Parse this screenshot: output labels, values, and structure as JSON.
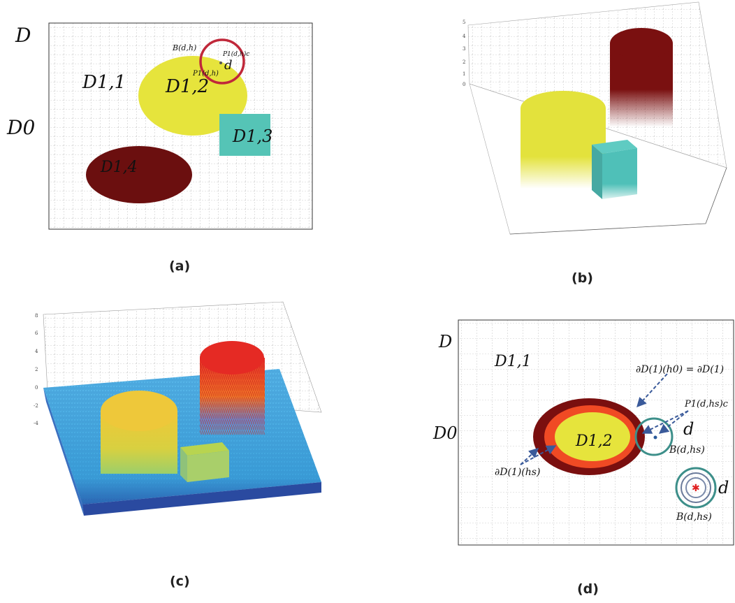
{
  "panels": {
    "a": {
      "caption": "(a)",
      "labels": {
        "D": "D",
        "D0": "D0",
        "D11": "D1,1",
        "D12": "D1,2",
        "D13": "D1,3",
        "D14": "D1,4",
        "B": "B(d,h)",
        "P1c": "P1(d,h)c",
        "P1": "P1(d,h)",
        "d": "d"
      },
      "colors": {
        "yellow": "#e6e43c",
        "teal": "#55c4b6",
        "dark": "#6b0f0f",
        "circle": "#c0283a"
      }
    },
    "b": {
      "caption": "(b)",
      "z_ticks": [
        "5",
        "4",
        "3",
        "2",
        "1",
        "0"
      ]
    },
    "c": {
      "caption": "(c)",
      "z_ticks": [
        "8",
        "6",
        "4",
        "2",
        "0",
        "-2",
        "-4"
      ]
    },
    "d": {
      "caption": "(d)",
      "labels": {
        "D": "D",
        "D0": "D0",
        "D11": "D1,1",
        "D12": "D1,2",
        "boundary_eq": "∂D(1)(h0) = ∂D(1)",
        "P1c": "P1(d,hs)c",
        "d1": "d",
        "B1": "B(d,hs)",
        "dhs": "∂D(1)(hs)",
        "d2": "d",
        "B2": "B(d,hs)"
      },
      "colors": {
        "outer": "#7a0f0f",
        "middle": "#f04a24",
        "inner": "#e6e43c",
        "circle": "#3d8f8a",
        "arrow": "#3a5a9a"
      }
    }
  }
}
